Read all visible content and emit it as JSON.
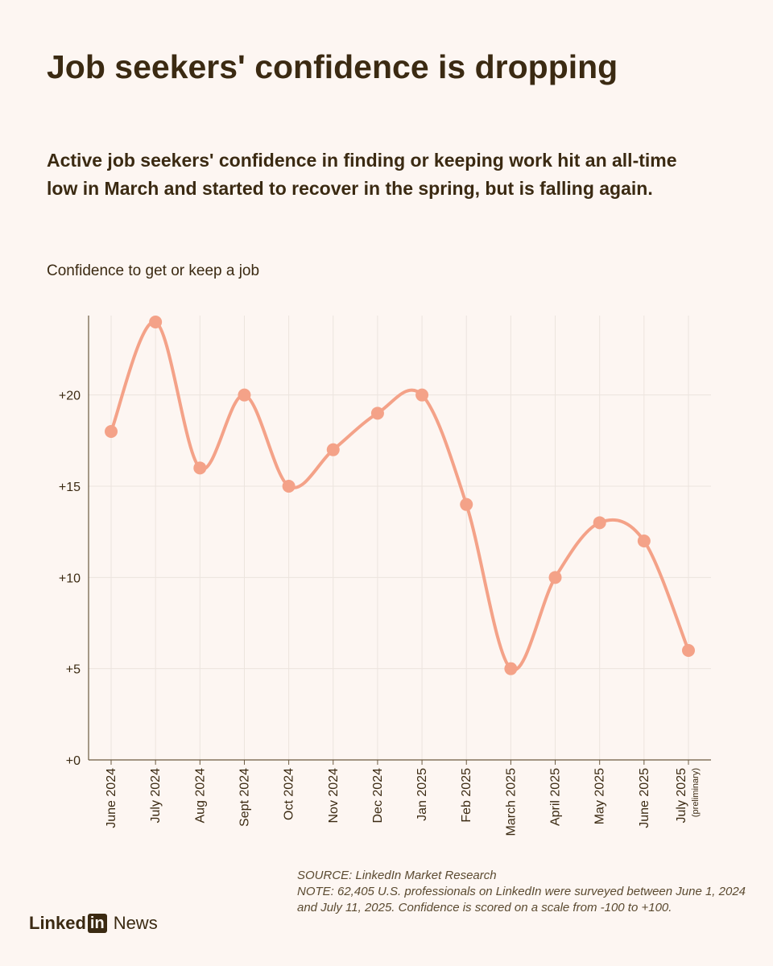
{
  "header": {
    "title": "Job seekers' confidence is dropping",
    "subtitle": "Active job seekers' confidence in finding or keeping work hit an all-time low in March and started to recover in the spring, but is falling again."
  },
  "colors": {
    "background": "#fdf6f2",
    "line": "#f4a288",
    "text": "#3b2a12",
    "grid": "#ece4de"
  },
  "chart_data": {
    "type": "line",
    "title": "Job seekers' confidence is dropping",
    "ylabel": "Confidence to get or keep a job",
    "xlabel": "",
    "categories": [
      "June 2024",
      "July 2024",
      "Aug 2024",
      "Sept 2024",
      "Oct 2024",
      "Nov 2024",
      "Dec 2024",
      "Jan 2025",
      "Feb 2025",
      "March 2025",
      "April 2025",
      "May 2025",
      "June 2025",
      "July 2025"
    ],
    "category_notes": [
      "",
      "",
      "",
      "",
      "",
      "",
      "",
      "",
      "",
      "",
      "",
      "",
      "",
      "(preliminary)"
    ],
    "values": [
      18,
      24,
      16,
      20,
      15,
      17,
      19,
      20,
      14,
      5,
      10,
      13,
      12,
      6
    ],
    "ylim": [
      0,
      24
    ],
    "yticks": [
      0,
      5,
      10,
      15,
      20
    ],
    "ytick_labels": [
      "+0",
      "+5",
      "+10",
      "+15",
      "+20"
    ],
    "grid": true,
    "smooth": true
  },
  "footnote": {
    "source": "SOURCE: LinkedIn Market Research",
    "note": "NOTE: 62,405 U.S. professionals on LinkedIn were surveyed between June 1, 2024 and July 11, 2025. Confidence is scored on a scale from -100 to +100."
  },
  "brand": {
    "linked": "Linked",
    "in": "in",
    "news": "News"
  }
}
